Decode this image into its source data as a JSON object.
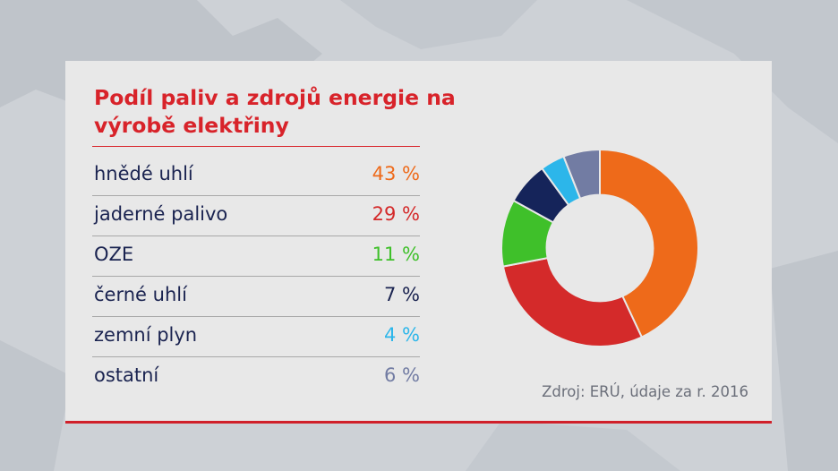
{
  "chart_data": {
    "type": "pie",
    "title": "Podíl paliv a zdrojů energie na výrobě elektřiny",
    "categories": [
      "hnědé uhlí",
      "jaderné palivo",
      "OZE",
      "černé uhlí",
      "zemní plyn",
      "ostatní"
    ],
    "values": [
      43,
      29,
      11,
      7,
      4,
      6
    ],
    "value_labels": [
      "43 %",
      "29 %",
      "11 %",
      "7 %",
      "4 %",
      "6 %"
    ],
    "colors": [
      "#ee6a1a",
      "#d42a2a",
      "#3fc02a",
      "#15245a",
      "#2cb6ea",
      "#727ca3"
    ],
    "label_color": "#1a2350",
    "inner_radius_ratio": 0.54,
    "source": "Zdroj: ERÚ, údaje za r. 2016"
  }
}
